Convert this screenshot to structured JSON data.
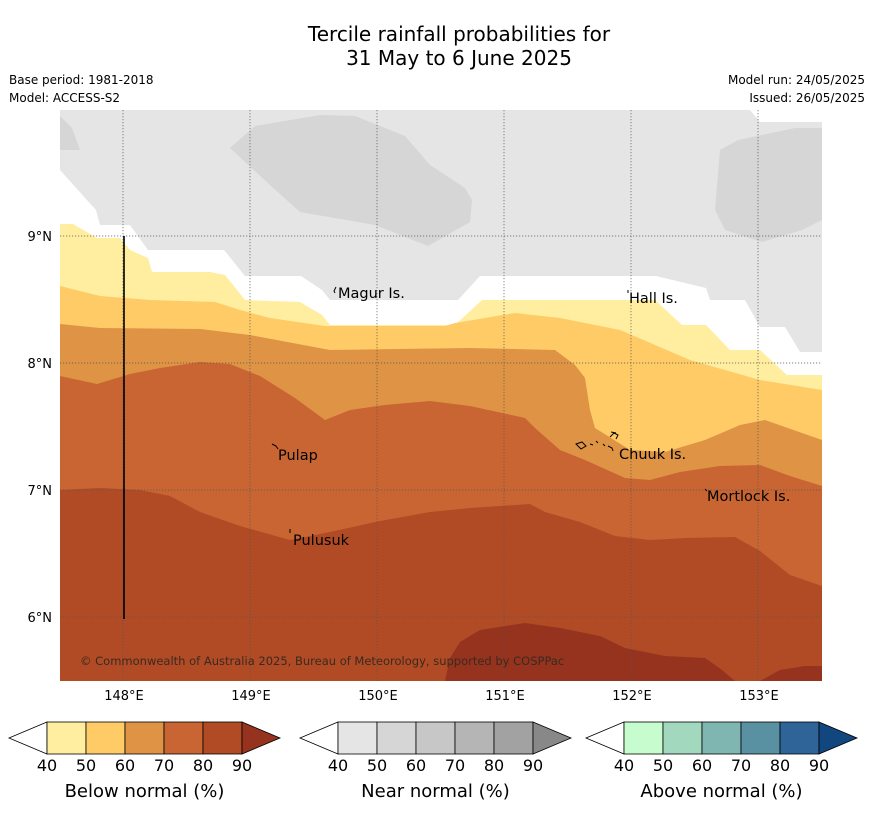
{
  "title": {
    "line1": "Tercile rainfall probabilities for",
    "line2": "31 May to 6 June 2025"
  },
  "meta": {
    "base_period": "Base period: 1981-2018",
    "model": "Model: ACCESS-S2",
    "model_run": "Model run: 24/05/2025",
    "issued": "Issued: 26/05/2025"
  },
  "map": {
    "lon_labels": [
      "148°E",
      "149°E",
      "150°E",
      "151°E",
      "152°E",
      "153°E"
    ],
    "lat_labels": [
      "9°N",
      "8°N",
      "7°N",
      "6°N"
    ],
    "places": [
      {
        "name": "Magur Is."
      },
      {
        "name": "Hall Is."
      },
      {
        "name": "Pulap"
      },
      {
        "name": "Chuuk Is."
      },
      {
        "name": "Mortlock Is."
      },
      {
        "name": "Pulusuk"
      }
    ],
    "copyright": "© Commonwealth of Australia 2025, Bureau of Meteorology, supported by COSPPac"
  },
  "colorbars": [
    {
      "name": "below-normal",
      "label": "Below normal (%)",
      "ticks": [
        "40",
        "50",
        "60",
        "70",
        "80",
        "90"
      ],
      "colors": [
        "#ffffff",
        "#ffeda0",
        "#fecb67",
        "#df9445",
        "#c96533",
        "#b04b25",
        "#95331e"
      ]
    },
    {
      "name": "near-normal",
      "label": "Near normal (%)",
      "ticks": [
        "40",
        "50",
        "60",
        "70",
        "80",
        "90"
      ],
      "colors": [
        "#ffffff",
        "#e5e5e5",
        "#d6d6d6",
        "#c7c7c7",
        "#b5b5b5",
        "#a2a2a2",
        "#888888"
      ]
    },
    {
      "name": "above-normal",
      "label": "Above normal (%)",
      "ticks": [
        "40",
        "50",
        "60",
        "70",
        "80",
        "90"
      ],
      "colors": [
        "#ffffff",
        "#c7fdce",
        "#a2d8bd",
        "#7fb6b1",
        "#5a91a2",
        "#2f6499",
        "#12467f"
      ]
    }
  ],
  "fill_colors": {
    "near_40": "#e5e5e5",
    "near_50": "#d6d6d6",
    "below_50": "#ffeda0",
    "below_60": "#fecb67",
    "below_70": "#df9445",
    "below_80": "#c96533",
    "below_90": "#b04b25",
    "below_90plus": "#95331e"
  }
}
